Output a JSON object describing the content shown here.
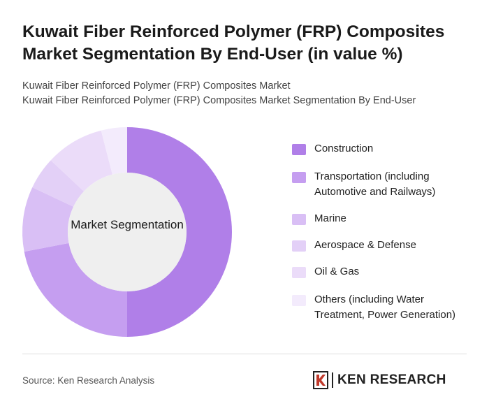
{
  "title_line1": "Kuwait Fiber Reinforced Polymer (FRP) Composites",
  "title_line2": "Market Segmentation By End-User (in value %)",
  "subtitle_line1": "Kuwait Fiber Reinforced Polymer (FRP) Composites Market",
  "subtitle_line2": "Kuwait Fiber Reinforced Polymer (FRP) Composites Market Segmentation By End-User",
  "source": "Source: Ken Research Analysis",
  "logo_text": "KEN RESEARCH",
  "logo_mark": "K",
  "chart_data": {
    "type": "pie",
    "variant": "donut",
    "center_label": "Market Segmentation",
    "legend_position": "right",
    "categories": [
      "Construction",
      "Transportation (including Automotive and Railways)",
      "Marine",
      "Aerospace & Defense",
      "Oil & Gas",
      "Others (including Water Treatment, Power Generation)"
    ],
    "values": [
      50,
      22,
      10,
      5,
      9,
      4
    ],
    "colors": [
      "#b07fe8",
      "#c59ef0",
      "#d9bff5",
      "#e3d0f7",
      "#ebdcf9",
      "#f3ebfc"
    ]
  }
}
